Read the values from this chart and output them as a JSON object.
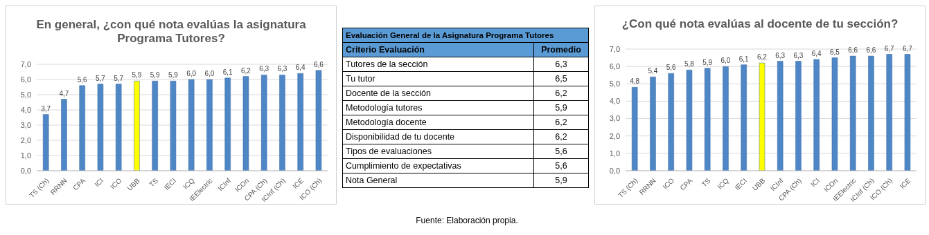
{
  "chart_data": [
    {
      "type": "bar",
      "title": "En general, ¿con qué nota evalúas la asignatura Programa Tutores?",
      "categories": [
        "TS (Ch)",
        "RRNN",
        "CPA",
        "ICI",
        "ICO",
        "UBB",
        "TS",
        "IECI",
        "ICQ",
        "IEElectric",
        "ICInf",
        "ICOn",
        "CPA (Ch)",
        "ICInf (Ch)",
        "ICE",
        "ICO (Ch)"
      ],
      "values": [
        3.7,
        4.7,
        5.6,
        5.7,
        5.7,
        5.9,
        5.9,
        5.9,
        6.0,
        6.0,
        6.1,
        6.2,
        6.3,
        6.3,
        6.4,
        6.6
      ],
      "value_labels": [
        "3,7",
        "4,7",
        "5,6",
        "5,7",
        "5,7",
        "5,9",
        "5,9",
        "5,9",
        "6,0",
        "6,0",
        "6,1",
        "6,2",
        "6,3",
        "6,3",
        "6,4",
        "6,6"
      ],
      "colors": [
        "#4f86c6",
        "#4f86c6",
        "#4f86c6",
        "#4f86c6",
        "#4f86c6",
        "#ffff00",
        "#4f86c6",
        "#4f86c6",
        "#4f86c6",
        "#4f86c6",
        "#4f86c6",
        "#4f86c6",
        "#4f86c6",
        "#4f86c6",
        "#4f86c6",
        "#4f86c6"
      ],
      "ylim": [
        0,
        7
      ],
      "yticks": [
        {
          "value": 0,
          "label": "0,0"
        },
        {
          "value": 1,
          "label": "1,0"
        },
        {
          "value": 2,
          "label": "2,0"
        },
        {
          "value": 3,
          "label": "3,0"
        },
        {
          "value": 4,
          "label": "4,0"
        },
        {
          "value": 5,
          "label": "5,0"
        },
        {
          "value": 6,
          "label": "6,0"
        },
        {
          "value": 7,
          "label": "7,0"
        }
      ],
      "grid": "y"
    },
    {
      "type": "other",
      "title": "Evaluación General de la Asignatura Programa Tutores",
      "categories": [
        "Tutores de la sección",
        "Tu tutor",
        "Docente de la sección",
        "Metodología tutores",
        "Metodología docente",
        "Disponibilidad de tu docente",
        "Tipos de evaluaciones",
        "Cumplimiento de expectativas",
        "Nota General"
      ],
      "value_labels": [
        "6,3",
        "6,5",
        "6,2",
        "5,9",
        "6,2",
        "6,2",
        "5,6",
        "5,6",
        "5,9"
      ],
      "annotations": [
        "Criterio Evaluación",
        "Promedio",
        "Fuente: Elaboración propia."
      ]
    },
    {
      "type": "bar",
      "title": "¿Con qué nota evalúas al docente de tu sección?",
      "categories": [
        "TS (Ch)",
        "RRNN",
        "ICO",
        "CPA",
        "TS",
        "ICQ",
        "IECI",
        "UBB",
        "ICInf",
        "CPA (Ch)",
        "ICI",
        "ICOn",
        "IEElectric",
        "ICInf (Ch)",
        "ICO (Ch)",
        "ICE"
      ],
      "values": [
        4.8,
        5.4,
        5.6,
        5.8,
        5.9,
        6.0,
        6.1,
        6.2,
        6.3,
        6.3,
        6.4,
        6.5,
        6.6,
        6.6,
        6.7,
        6.7
      ],
      "value_labels": [
        "4,8",
        "5,4",
        "5,6",
        "5,8",
        "5,9",
        "6,0",
        "6,1",
        "6,2",
        "6,3",
        "6,3",
        "6,4",
        "6,5",
        "6,6",
        "6,6",
        "6,7",
        "6,7"
      ],
      "colors": [
        "#4f86c6",
        "#4f86c6",
        "#4f86c6",
        "#4f86c6",
        "#4f86c6",
        "#4f86c6",
        "#4f86c6",
        "#ffff00",
        "#4f86c6",
        "#4f86c6",
        "#4f86c6",
        "#4f86c6",
        "#4f86c6",
        "#4f86c6",
        "#4f86c6",
        "#4f86c6"
      ],
      "ylim": [
        0,
        7
      ],
      "yticks": [
        {
          "value": 0,
          "label": "0,0"
        },
        {
          "value": 1,
          "label": "1,0"
        },
        {
          "value": 2,
          "label": "2,0"
        },
        {
          "value": 3,
          "label": "3,0"
        },
        {
          "value": 4,
          "label": "4,0"
        },
        {
          "value": 5,
          "label": "5,0"
        },
        {
          "value": 6,
          "label": "6,0"
        },
        {
          "value": 7,
          "label": "7,0"
        }
      ],
      "grid": "y"
    }
  ]
}
